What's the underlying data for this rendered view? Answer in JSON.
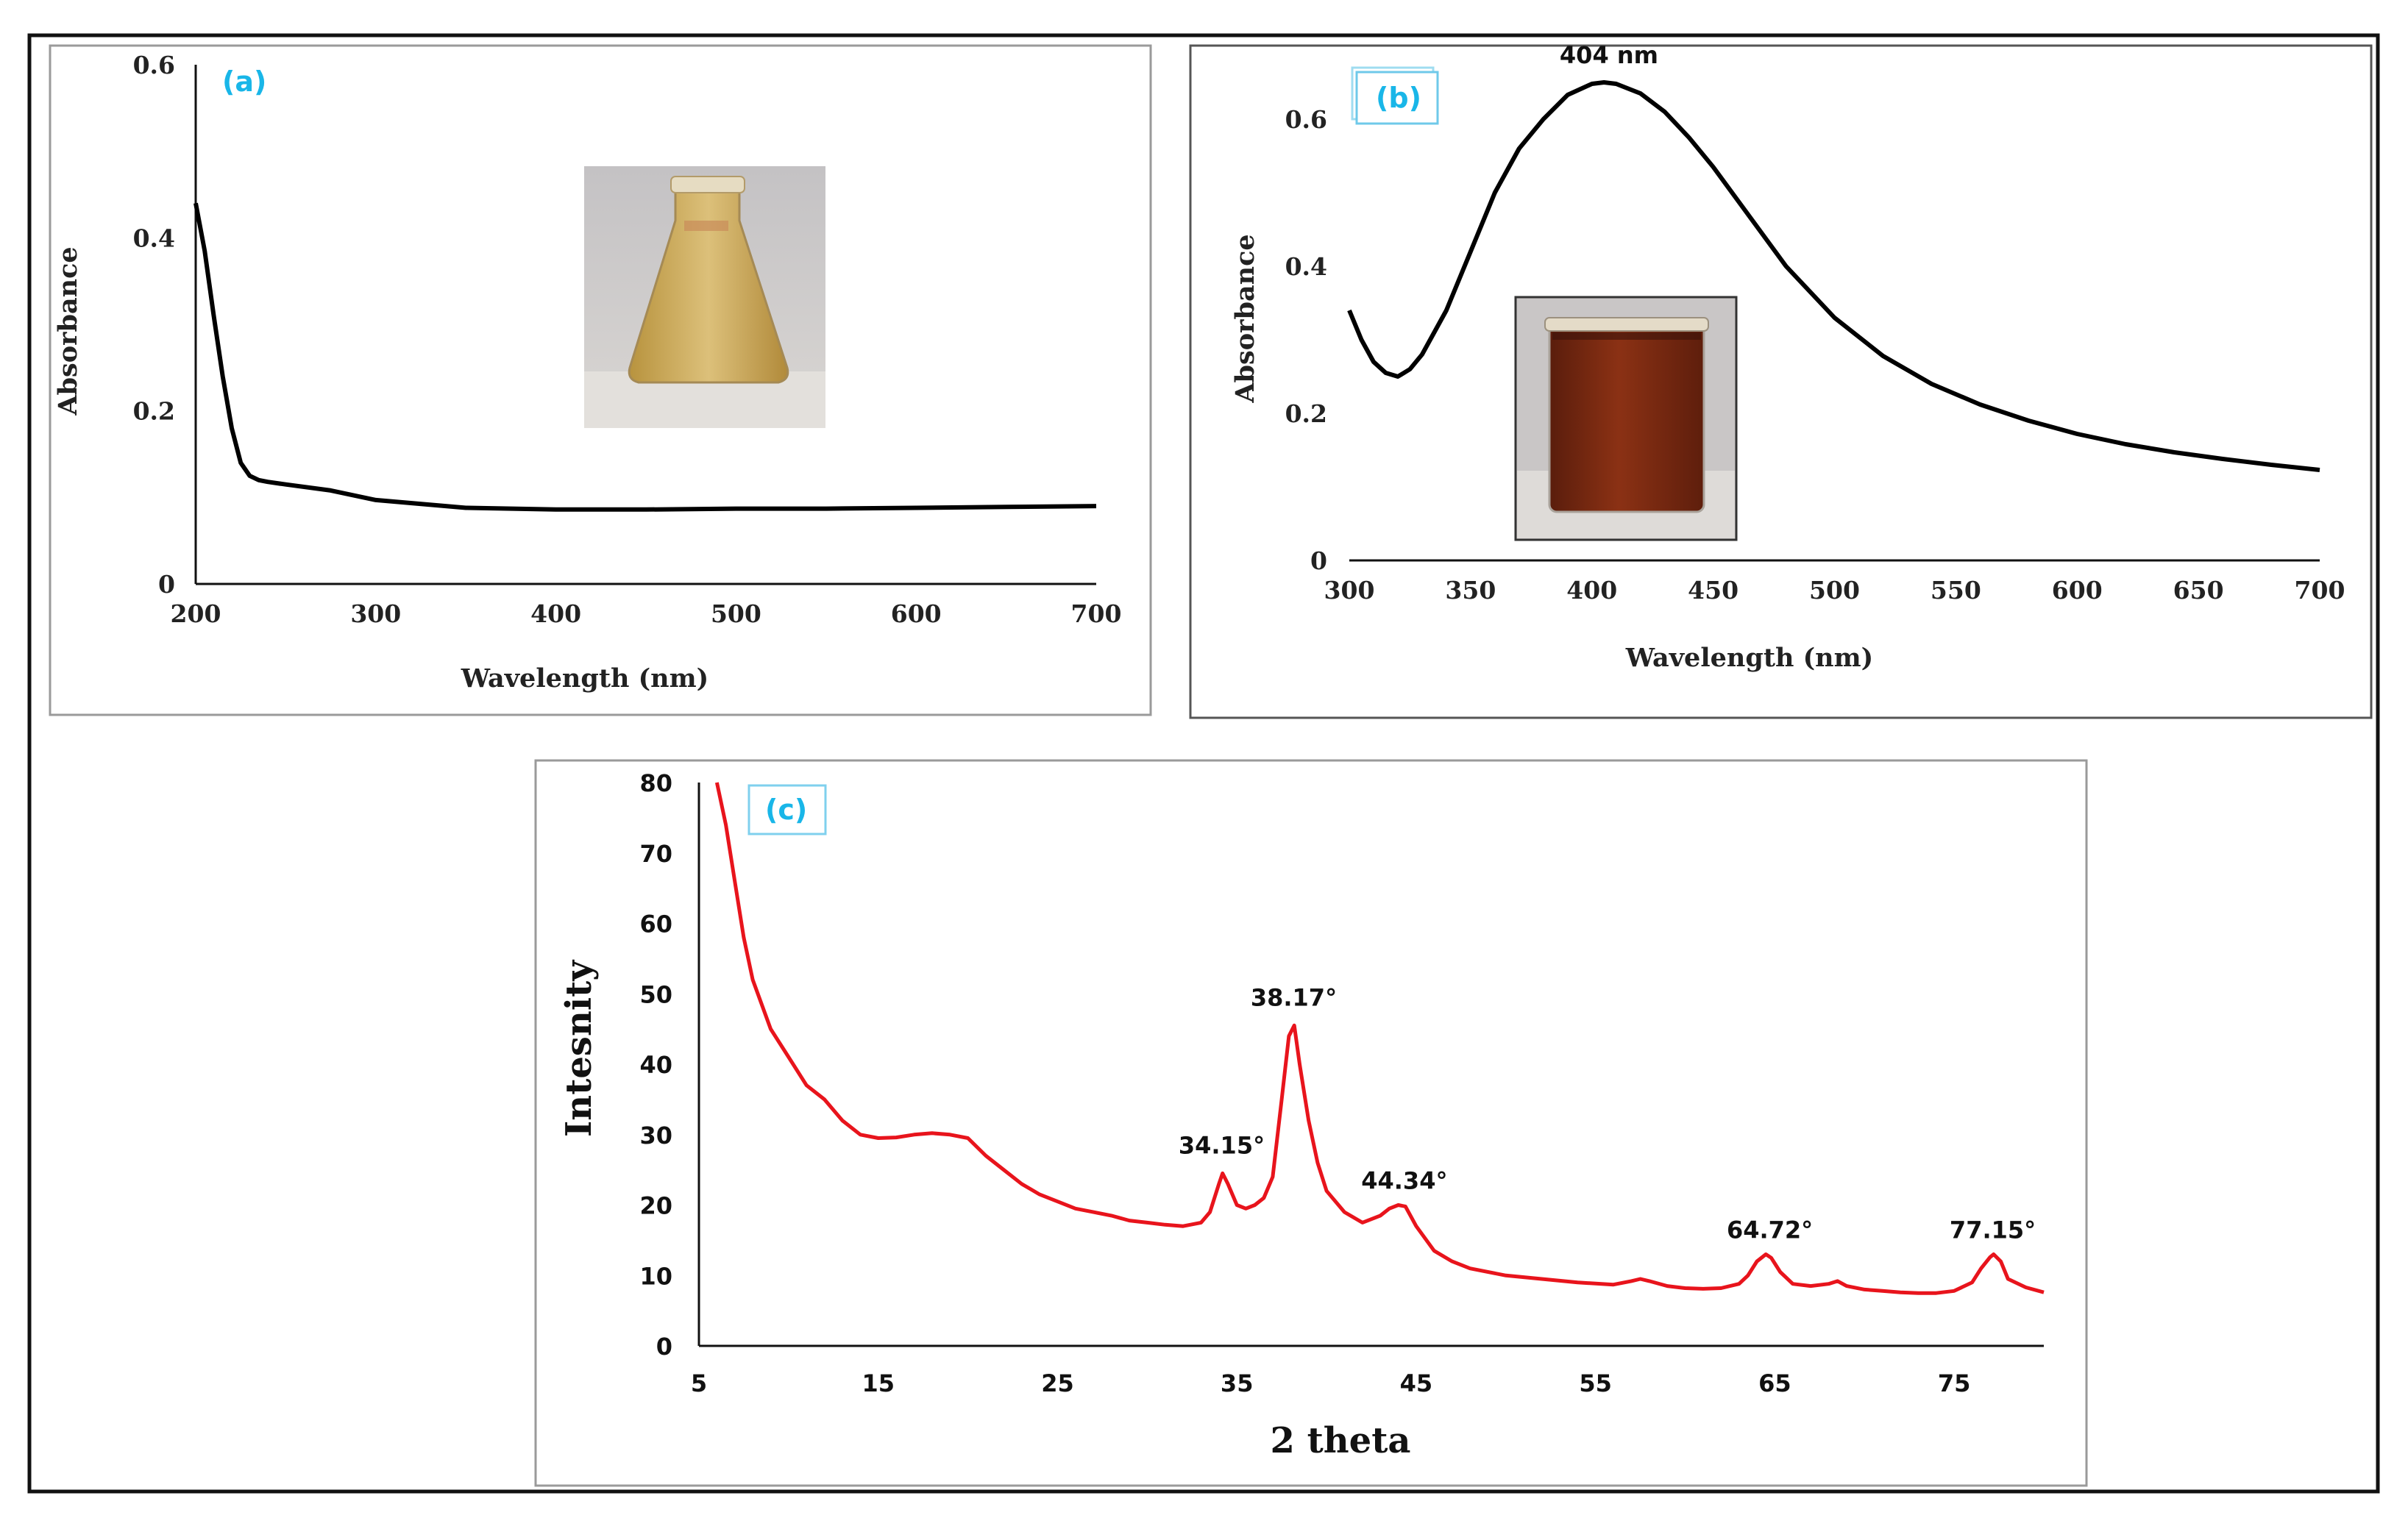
{
  "chart_data": [
    {
      "panel": "(a)",
      "type": "line",
      "xlabel": "Wavelength (nm)",
      "ylabel": "Absorbance",
      "xlim": [
        200,
        700
      ],
      "ylim": [
        0,
        0.6
      ],
      "x_ticks": [
        "200",
        "300",
        "400",
        "500",
        "600",
        "700"
      ],
      "y_ticks": [
        "0",
        "0.2",
        "0.4",
        "0.6"
      ],
      "series": [
        {
          "name": "Absorbance",
          "x": [
            200,
            205,
            210,
            215,
            220,
            225,
            230,
            235,
            240,
            250,
            275,
            300,
            350,
            400,
            450,
            500,
            550,
            600,
            650,
            700
          ],
          "y": [
            0.44,
            0.385,
            0.31,
            0.24,
            0.18,
            0.14,
            0.125,
            0.12,
            0.118,
            0.115,
            0.108,
            0.097,
            0.088,
            0.086,
            0.086,
            0.087,
            0.087,
            0.088,
            0.089,
            0.09
          ]
        }
      ],
      "color": "#000000",
      "inset_image": "flask of pale yellow solution"
    },
    {
      "panel": "(b)",
      "type": "line",
      "xlabel": "Wavelength (nm)",
      "ylabel": "Absorbance",
      "xlim": [
        300,
        700
      ],
      "ylim": [
        0,
        0.7
      ],
      "x_ticks": [
        "300",
        "350",
        "400",
        "450",
        "500",
        "550",
        "600",
        "650",
        "700"
      ],
      "y_ticks": [
        "0",
        "0.2",
        "0.4",
        "0.6"
      ],
      "annotations": [
        {
          "text": "404 nm",
          "x": 404,
          "y": 0.65
        }
      ],
      "series": [
        {
          "name": "Absorbance",
          "x": [
            300,
            305,
            310,
            315,
            320,
            325,
            330,
            340,
            350,
            360,
            370,
            380,
            390,
            400,
            405,
            410,
            420,
            430,
            440,
            450,
            460,
            470,
            480,
            500,
            520,
            540,
            560,
            580,
            600,
            620,
            640,
            660,
            680,
            700
          ],
          "y": [
            0.34,
            0.3,
            0.27,
            0.255,
            0.25,
            0.26,
            0.28,
            0.34,
            0.42,
            0.5,
            0.56,
            0.6,
            0.633,
            0.648,
            0.65,
            0.648,
            0.635,
            0.61,
            0.575,
            0.535,
            0.49,
            0.445,
            0.4,
            0.33,
            0.278,
            0.24,
            0.212,
            0.19,
            0.172,
            0.158,
            0.147,
            0.138,
            0.13,
            0.123
          ]
        }
      ],
      "color": "#000000",
      "inset_image": "beaker of dark reddish-brown solution"
    },
    {
      "panel": "(c)",
      "type": "line",
      "xlabel": "2 theta",
      "ylabel": "Intesnity",
      "xlim": [
        5,
        80
      ],
      "ylim": [
        0,
        80
      ],
      "x_ticks": [
        "5",
        "15",
        "25",
        "35",
        "45",
        "55",
        "65",
        "75"
      ],
      "y_ticks": [
        "0",
        "10",
        "20",
        "30",
        "40",
        "50",
        "60",
        "70",
        "80"
      ],
      "annotations": [
        {
          "text": "34.15°",
          "x": 34.15,
          "y": 25
        },
        {
          "text": "38.17°",
          "x": 38.17,
          "y": 46
        },
        {
          "text": "44.34°",
          "x": 44.34,
          "y": 20
        },
        {
          "text": "64.72°",
          "x": 64.72,
          "y": 13
        },
        {
          "text": "77.15°",
          "x": 77.15,
          "y": 13
        }
      ],
      "series": [
        {
          "name": "XRD",
          "x": [
            6,
            6.5,
            7,
            7.5,
            8,
            9,
            10,
            11,
            12,
            13,
            14,
            15,
            16,
            17,
            18,
            19,
            20,
            21,
            22,
            23,
            24,
            25,
            26,
            27,
            28,
            29,
            30,
            31,
            32,
            33,
            33.5,
            34,
            34.2,
            34.5,
            35,
            35.5,
            36,
            36.5,
            37,
            37.5,
            37.9,
            38.2,
            38.5,
            39,
            39.5,
            40,
            41,
            42,
            43,
            43.5,
            44,
            44.4,
            45,
            46,
            47,
            48,
            50,
            52,
            54,
            56,
            57,
            57.5,
            58,
            59,
            60,
            61,
            62,
            63,
            63.5,
            64,
            64.5,
            64.8,
            65.3,
            66,
            67,
            68,
            68.5,
            69,
            70,
            71,
            72,
            73,
            74,
            75,
            76,
            76.5,
            77,
            77.2,
            77.6,
            78,
            79,
            80
          ],
          "y": [
            80,
            74,
            66,
            58,
            52,
            45,
            41,
            37,
            35,
            32,
            30,
            29.5,
            29.6,
            30,
            30.2,
            30,
            29.5,
            27,
            25,
            23,
            21.5,
            20.5,
            19.5,
            19,
            18.5,
            17.8,
            17.5,
            17.2,
            17,
            17.5,
            19,
            23,
            24.5,
            23,
            20,
            19.5,
            20,
            21,
            24,
            35,
            44,
            45.5,
            40,
            32,
            26,
            22,
            19,
            17.5,
            18.5,
            19.5,
            20,
            19.8,
            17,
            13.5,
            12,
            11,
            10,
            9.5,
            9,
            8.7,
            9.2,
            9.5,
            9.2,
            8.5,
            8.2,
            8.1,
            8.2,
            8.8,
            10,
            12,
            13,
            12.5,
            10.5,
            8.8,
            8.5,
            8.8,
            9.2,
            8.5,
            8,
            7.8,
            7.6,
            7.5,
            7.5,
            7.8,
            9,
            11,
            12.6,
            13,
            12,
            9.5,
            8.3,
            7.6
          ]
        }
      ],
      "color": "#e8141c"
    }
  ]
}
